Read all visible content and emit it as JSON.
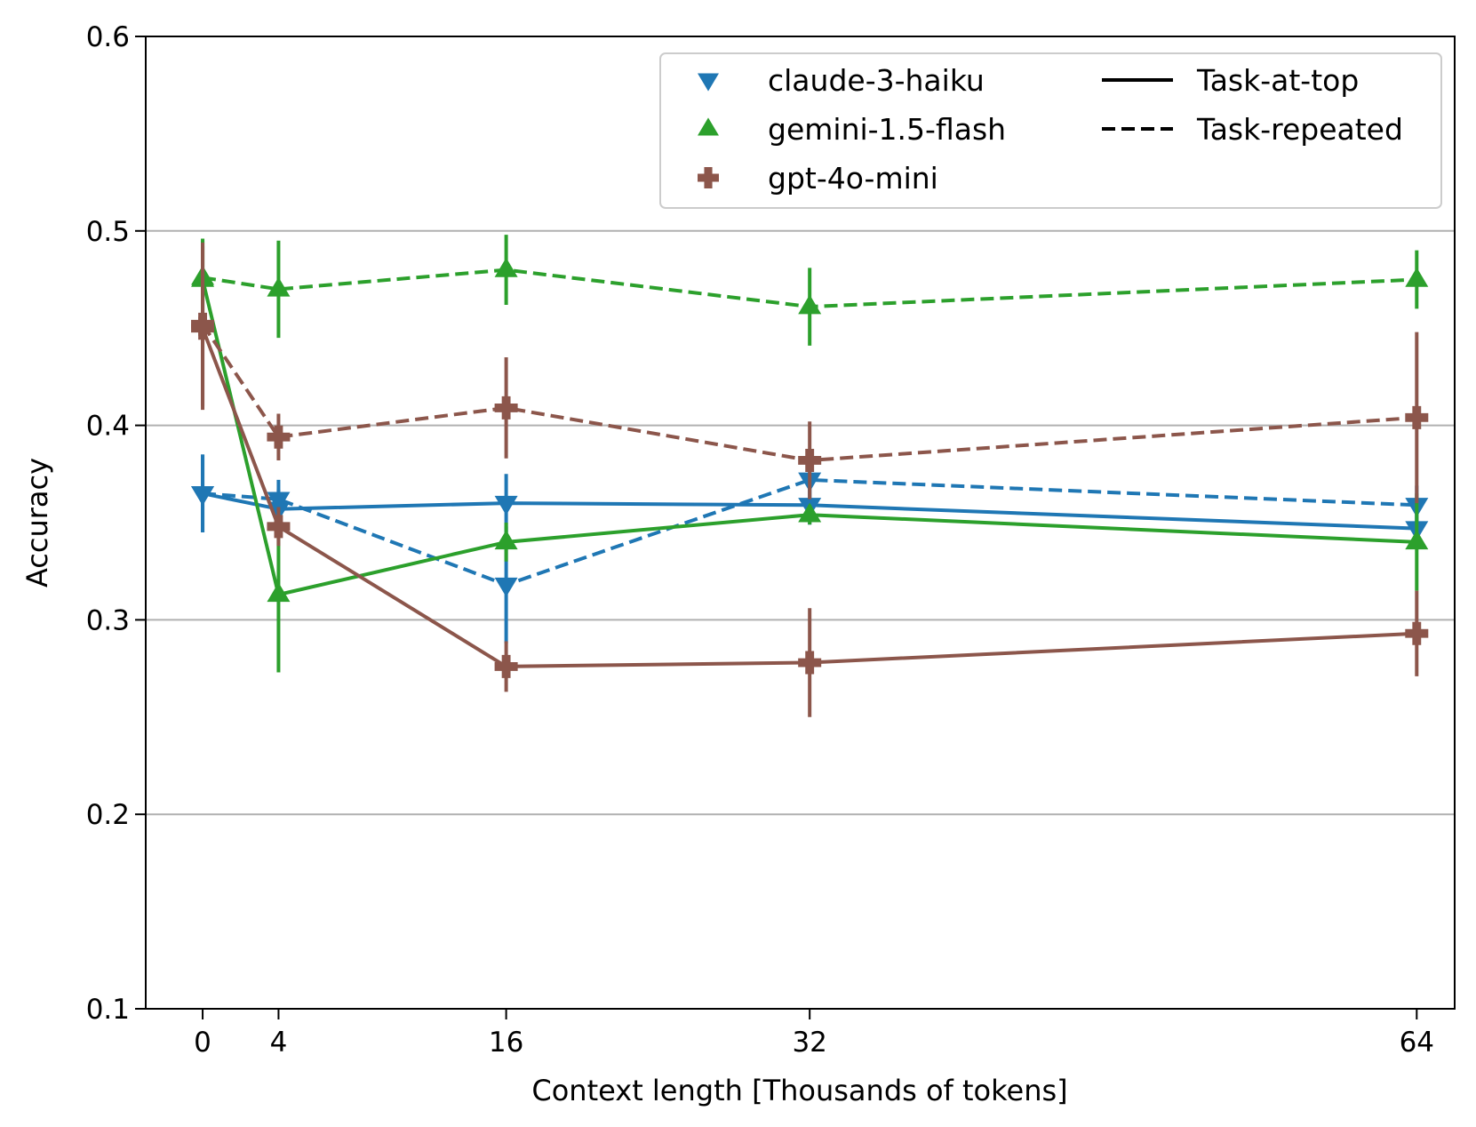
{
  "chart_data": {
    "type": "line",
    "xlabel": "Context length [Thousands of tokens]",
    "ylabel": "Accuracy",
    "xlim": [
      -3,
      66
    ],
    "ylim": [
      0.1,
      0.6
    ],
    "x_ticks": [
      0,
      4,
      16,
      32,
      64
    ],
    "x_tick_labels": [
      "0",
      "4",
      "16",
      "32",
      "64"
    ],
    "y_ticks": [
      0.1,
      0.2,
      0.3,
      0.4,
      0.5,
      0.6
    ],
    "y_tick_labels": [
      "0.1",
      "0.2",
      "0.3",
      "0.4",
      "0.5",
      "0.6"
    ],
    "grid": "horizontal",
    "legend_placement": "top-right",
    "models": [
      {
        "name": "claude-3-haiku",
        "color": "#1f77b4",
        "marker": "triangle-down"
      },
      {
        "name": "gemini-1.5-flash",
        "color": "#2ca02c",
        "marker": "triangle-up"
      },
      {
        "name": "gpt-4o-mini",
        "color": "#8c564b",
        "marker": "plus"
      }
    ],
    "conditions": [
      {
        "name": "Task-at-top",
        "linestyle": "solid"
      },
      {
        "name": "Task-repeated",
        "linestyle": "dashed"
      }
    ],
    "series": [
      {
        "model": "claude-3-haiku",
        "condition": "Task-at-top",
        "x": [
          0,
          4,
          16,
          32,
          64
        ],
        "y": [
          0.365,
          0.357,
          0.36,
          0.359,
          0.347
        ],
        "err_low": [
          0.345,
          0.347,
          0.345,
          0.349,
          0.337
        ],
        "err_high": [
          0.385,
          0.367,
          0.375,
          0.369,
          0.357
        ]
      },
      {
        "model": "claude-3-haiku",
        "condition": "Task-repeated",
        "x": [
          0,
          4,
          16,
          32,
          64
        ],
        "y": [
          0.365,
          0.362,
          0.318,
          0.372,
          0.359
        ],
        "err_low": [
          0.345,
          0.352,
          0.288,
          0.362,
          0.349
        ],
        "err_high": [
          0.385,
          0.372,
          0.348,
          0.382,
          0.369
        ]
      },
      {
        "model": "gemini-1.5-flash",
        "condition": "Task-at-top",
        "x": [
          0,
          4,
          16,
          32,
          64
        ],
        "y": [
          0.475,
          0.313,
          0.34,
          0.354,
          0.34
        ],
        "err_low": [
          0.455,
          0.273,
          0.33,
          0.349,
          0.315
        ],
        "err_high": [
          0.495,
          0.353,
          0.35,
          0.359,
          0.365
        ]
      },
      {
        "model": "gemini-1.5-flash",
        "condition": "Task-repeated",
        "x": [
          0,
          4,
          16,
          32,
          64
        ],
        "y": [
          0.476,
          0.47,
          0.48,
          0.461,
          0.475
        ],
        "err_low": [
          0.456,
          0.445,
          0.462,
          0.441,
          0.46
        ],
        "err_high": [
          0.496,
          0.495,
          0.498,
          0.481,
          0.49
        ]
      },
      {
        "model": "gpt-4o-mini",
        "condition": "Task-at-top",
        "x": [
          0,
          4,
          16,
          32,
          64
        ],
        "y": [
          0.45,
          0.348,
          0.276,
          0.278,
          0.293
        ],
        "err_low": [
          0.408,
          0.338,
          0.263,
          0.25,
          0.271
        ],
        "err_high": [
          0.492,
          0.358,
          0.289,
          0.306,
          0.315
        ]
      },
      {
        "model": "gpt-4o-mini",
        "condition": "Task-repeated",
        "x": [
          0,
          4,
          16,
          32,
          64
        ],
        "y": [
          0.452,
          0.394,
          0.409,
          0.382,
          0.404
        ],
        "err_low": [
          0.41,
          0.382,
          0.383,
          0.362,
          0.36
        ],
        "err_high": [
          0.494,
          0.406,
          0.435,
          0.402,
          0.448
        ]
      }
    ]
  }
}
